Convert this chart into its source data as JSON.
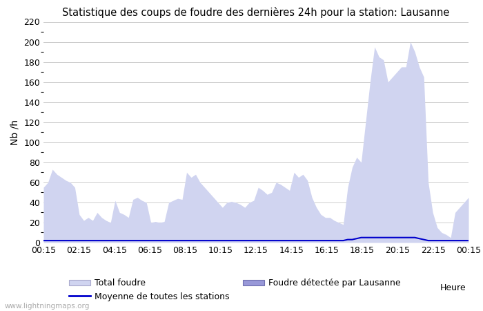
{
  "title": "Statistique des coups de foudre des dernières 24h pour la station: Lausanne",
  "xlabel": "Heure",
  "ylabel": "Nb /h",
  "ylim": [
    0,
    220
  ],
  "yticks": [
    0,
    20,
    40,
    60,
    80,
    100,
    120,
    140,
    160,
    180,
    200,
    220
  ],
  "x_labels": [
    "00:15",
    "02:15",
    "04:15",
    "06:15",
    "08:15",
    "10:15",
    "12:15",
    "14:15",
    "16:15",
    "18:15",
    "20:15",
    "22:15",
    "00:15"
  ],
  "background_color": "#ffffff",
  "total_foudre_color": "#d0d4f0",
  "lausanne_color": "#9898d8",
  "moyenne_color": "#0000cc",
  "watermark": "www.lightningmaps.org",
  "total_foudre": [
    55,
    60,
    73,
    68,
    65,
    62,
    60,
    55,
    28,
    22,
    25,
    22,
    30,
    25,
    22,
    20,
    42,
    30,
    28,
    25,
    43,
    45,
    42,
    40,
    20,
    21,
    20,
    21,
    40,
    42,
    44,
    43,
    70,
    65,
    68,
    60,
    55,
    50,
    45,
    40,
    35,
    40,
    41,
    40,
    38,
    35,
    40,
    42,
    55,
    52,
    48,
    50,
    60,
    58,
    55,
    52,
    70,
    65,
    68,
    62,
    45,
    35,
    28,
    25,
    25,
    22,
    20,
    18,
    55,
    75,
    85,
    80,
    120,
    160,
    195,
    185,
    182,
    160,
    165,
    170,
    175,
    175,
    200,
    190,
    175,
    165,
    60,
    30,
    15,
    10,
    8,
    5,
    30,
    35,
    40,
    45
  ],
  "lausanne_foudre": [
    0,
    0,
    0,
    0,
    0,
    0,
    0,
    0,
    0,
    0,
    0,
    0,
    0,
    0,
    0,
    0,
    0,
    0,
    0,
    0,
    0,
    0,
    0,
    0,
    0,
    0,
    0,
    0,
    0,
    0,
    0,
    0,
    0,
    0,
    0,
    0,
    0,
    0,
    0,
    0,
    0,
    0,
    0,
    0,
    0,
    0,
    0,
    0,
    0,
    0,
    0,
    0,
    0,
    0,
    0,
    0,
    0,
    0,
    0,
    0,
    0,
    0,
    0,
    0,
    0,
    0,
    0,
    0,
    0,
    0,
    0,
    0,
    0,
    0,
    0,
    0,
    0,
    0,
    0,
    0,
    0,
    0,
    0,
    0,
    0,
    0,
    0,
    0,
    0,
    0,
    0,
    0,
    0,
    0,
    0,
    0
  ],
  "moyenne": [
    2,
    2,
    2,
    2,
    2,
    2,
    2,
    2,
    2,
    2,
    2,
    2,
    2,
    2,
    2,
    2,
    2,
    2,
    2,
    2,
    2,
    2,
    2,
    2,
    2,
    2,
    2,
    2,
    2,
    2,
    2,
    2,
    2,
    2,
    2,
    2,
    2,
    2,
    2,
    2,
    2,
    2,
    2,
    2,
    2,
    2,
    2,
    2,
    2,
    2,
    2,
    2,
    2,
    2,
    2,
    2,
    2,
    2,
    2,
    2,
    2,
    2,
    2,
    2,
    2,
    2,
    2,
    2,
    3,
    3,
    4,
    5,
    5,
    5,
    5,
    5,
    5,
    5,
    5,
    5,
    5,
    5,
    5,
    5,
    4,
    3,
    2,
    2,
    2,
    2,
    2,
    2,
    2,
    2,
    2,
    2
  ]
}
